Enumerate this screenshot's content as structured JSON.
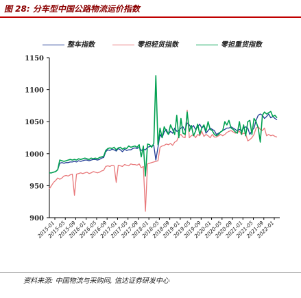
{
  "figure": {
    "title": "图 28:  分车型中国公路物流运价指数",
    "source": "资料来源:  中国物流与采购网,  信达证券研发中心"
  },
  "chart_data": {
    "type": "line",
    "title": "",
    "xlabel": "",
    "ylabel": "",
    "ylim": [
      900,
      1150
    ],
    "yticks": [
      900,
      950,
      1000,
      1050,
      1100,
      1150
    ],
    "legend_position": "top",
    "grid": false,
    "xtick_labels": [
      "2015-01",
      "2015-05",
      "2015-09",
      "2016-01",
      "2016-05",
      "2016-09",
      "2017-01",
      "2017-05",
      "2017-09",
      "2018-01",
      "2018-05",
      "2018-09",
      "2019-01",
      "2019-05",
      "2019-09",
      "2020-01",
      "2020-05",
      "2020-09",
      "2021-01",
      "2021-05",
      "2021-09",
      "2022-01"
    ],
    "series": [
      {
        "name": "整车指数",
        "color": "#1f3a93",
        "values": [
          970,
          970,
          971,
          972,
          975,
          985,
          986,
          985,
          986,
          986,
          987,
          987,
          988,
          987,
          989,
          988,
          989,
          990,
          990,
          989,
          990,
          991,
          991,
          990,
          991,
          993,
          994,
          1003,
          1006,
          1005,
          1007,
          1006,
          1004,
          1008,
          1006,
          1003,
          1007,
          1005,
          1006,
          1006,
          1008,
          1009,
          1008,
          1010,
          1005,
          1007,
          1006,
          1010,
          1011,
          1012,
          1013,
          990,
          1010,
          1030,
          1025,
          1034,
          1038,
          1030,
          1035,
          1032,
          1040,
          1035,
          1036,
          1040,
          1042,
          1036,
          1048,
          1045,
          1040,
          1044,
          1038,
          1042,
          1046,
          1040,
          1043,
          1032,
          1036,
          1040,
          1038,
          1036,
          1030,
          1032,
          1034,
          1036,
          1038,
          1040,
          1040,
          1042,
          1040,
          1038,
          1035,
          1038,
          1036,
          1040,
          1042,
          1040,
          1030,
          1036,
          1040,
          1052,
          1060,
          1062,
          1060,
          1055,
          1058,
          1062,
          1056,
          1058,
          1055,
          1053
        ]
      },
      {
        "name": "零担轻货指数",
        "color": "#e8787a",
        "values": [
          945,
          950,
          955,
          958,
          962,
          960,
          962,
          965,
          966,
          965,
          967,
          968,
          935,
          968,
          969,
          970,
          969,
          970,
          971,
          969,
          970,
          972,
          971,
          970,
          971,
          973,
          974,
          980,
          981,
          980,
          982,
          981,
          955,
          982,
          981,
          980,
          983,
          982,
          981,
          984,
          983,
          983,
          982,
          984,
          978,
          980,
          910,
          984,
          985,
          986,
          987,
          988,
          989,
          1010,
          1012,
          1013,
          1015,
          1014,
          1016,
          1013,
          1018,
          1020,
          1028,
          1030,
          1026,
          1025,
          1068,
          1025,
          1028,
          1030,
          1025,
          1030,
          1028,
          1035,
          1027,
          1030,
          1028,
          1025,
          1030,
          1026,
          1026,
          1028,
          1030,
          1028,
          1030,
          1033,
          1035,
          1036,
          1034,
          1032,
          1033,
          1035,
          1030,
          1032,
          1031,
          1020,
          1022,
          1025,
          1030,
          1040,
          1042,
          1038,
          1036,
          1040,
          1028,
          1030,
          1028,
          1029,
          1027,
          1026
        ]
      },
      {
        "name": "零担重货指数",
        "color": "#00a050",
        "values": [
          970,
          970,
          971,
          972,
          975,
          990,
          989,
          988,
          989,
          990,
          991,
          990,
          991,
          990,
          992,
          991,
          992,
          993,
          992,
          991,
          993,
          992,
          993,
          992,
          994,
          995,
          996,
          1005,
          1008,
          1009,
          1008,
          1010,
          1006,
          1009,
          1010,
          1007,
          1009,
          1008,
          1012,
          1010,
          1011,
          1012,
          1010,
          1014,
          995,
          1012,
          965,
          1015,
          1014,
          1010,
          1016,
          1122,
          1014,
          1040,
          1025,
          1042,
          1035,
          1030,
          1045,
          1038,
          1030,
          1060,
          1025,
          1055,
          1032,
          1030,
          1065,
          1035,
          1044,
          1028,
          1035,
          1046,
          1030,
          1040,
          1045,
          1035,
          1050,
          1038,
          1036,
          1030,
          1028,
          1030,
          1034,
          1036,
          1050,
          1045,
          1052,
          1040,
          1038,
          1034,
          1032,
          1050,
          1030,
          1045,
          1028,
          1050,
          1052,
          1030,
          1055,
          1050,
          1040,
          1018,
          1060,
          1065,
          1062,
          1064,
          1066,
          1058,
          1060,
          1056
        ]
      }
    ]
  }
}
